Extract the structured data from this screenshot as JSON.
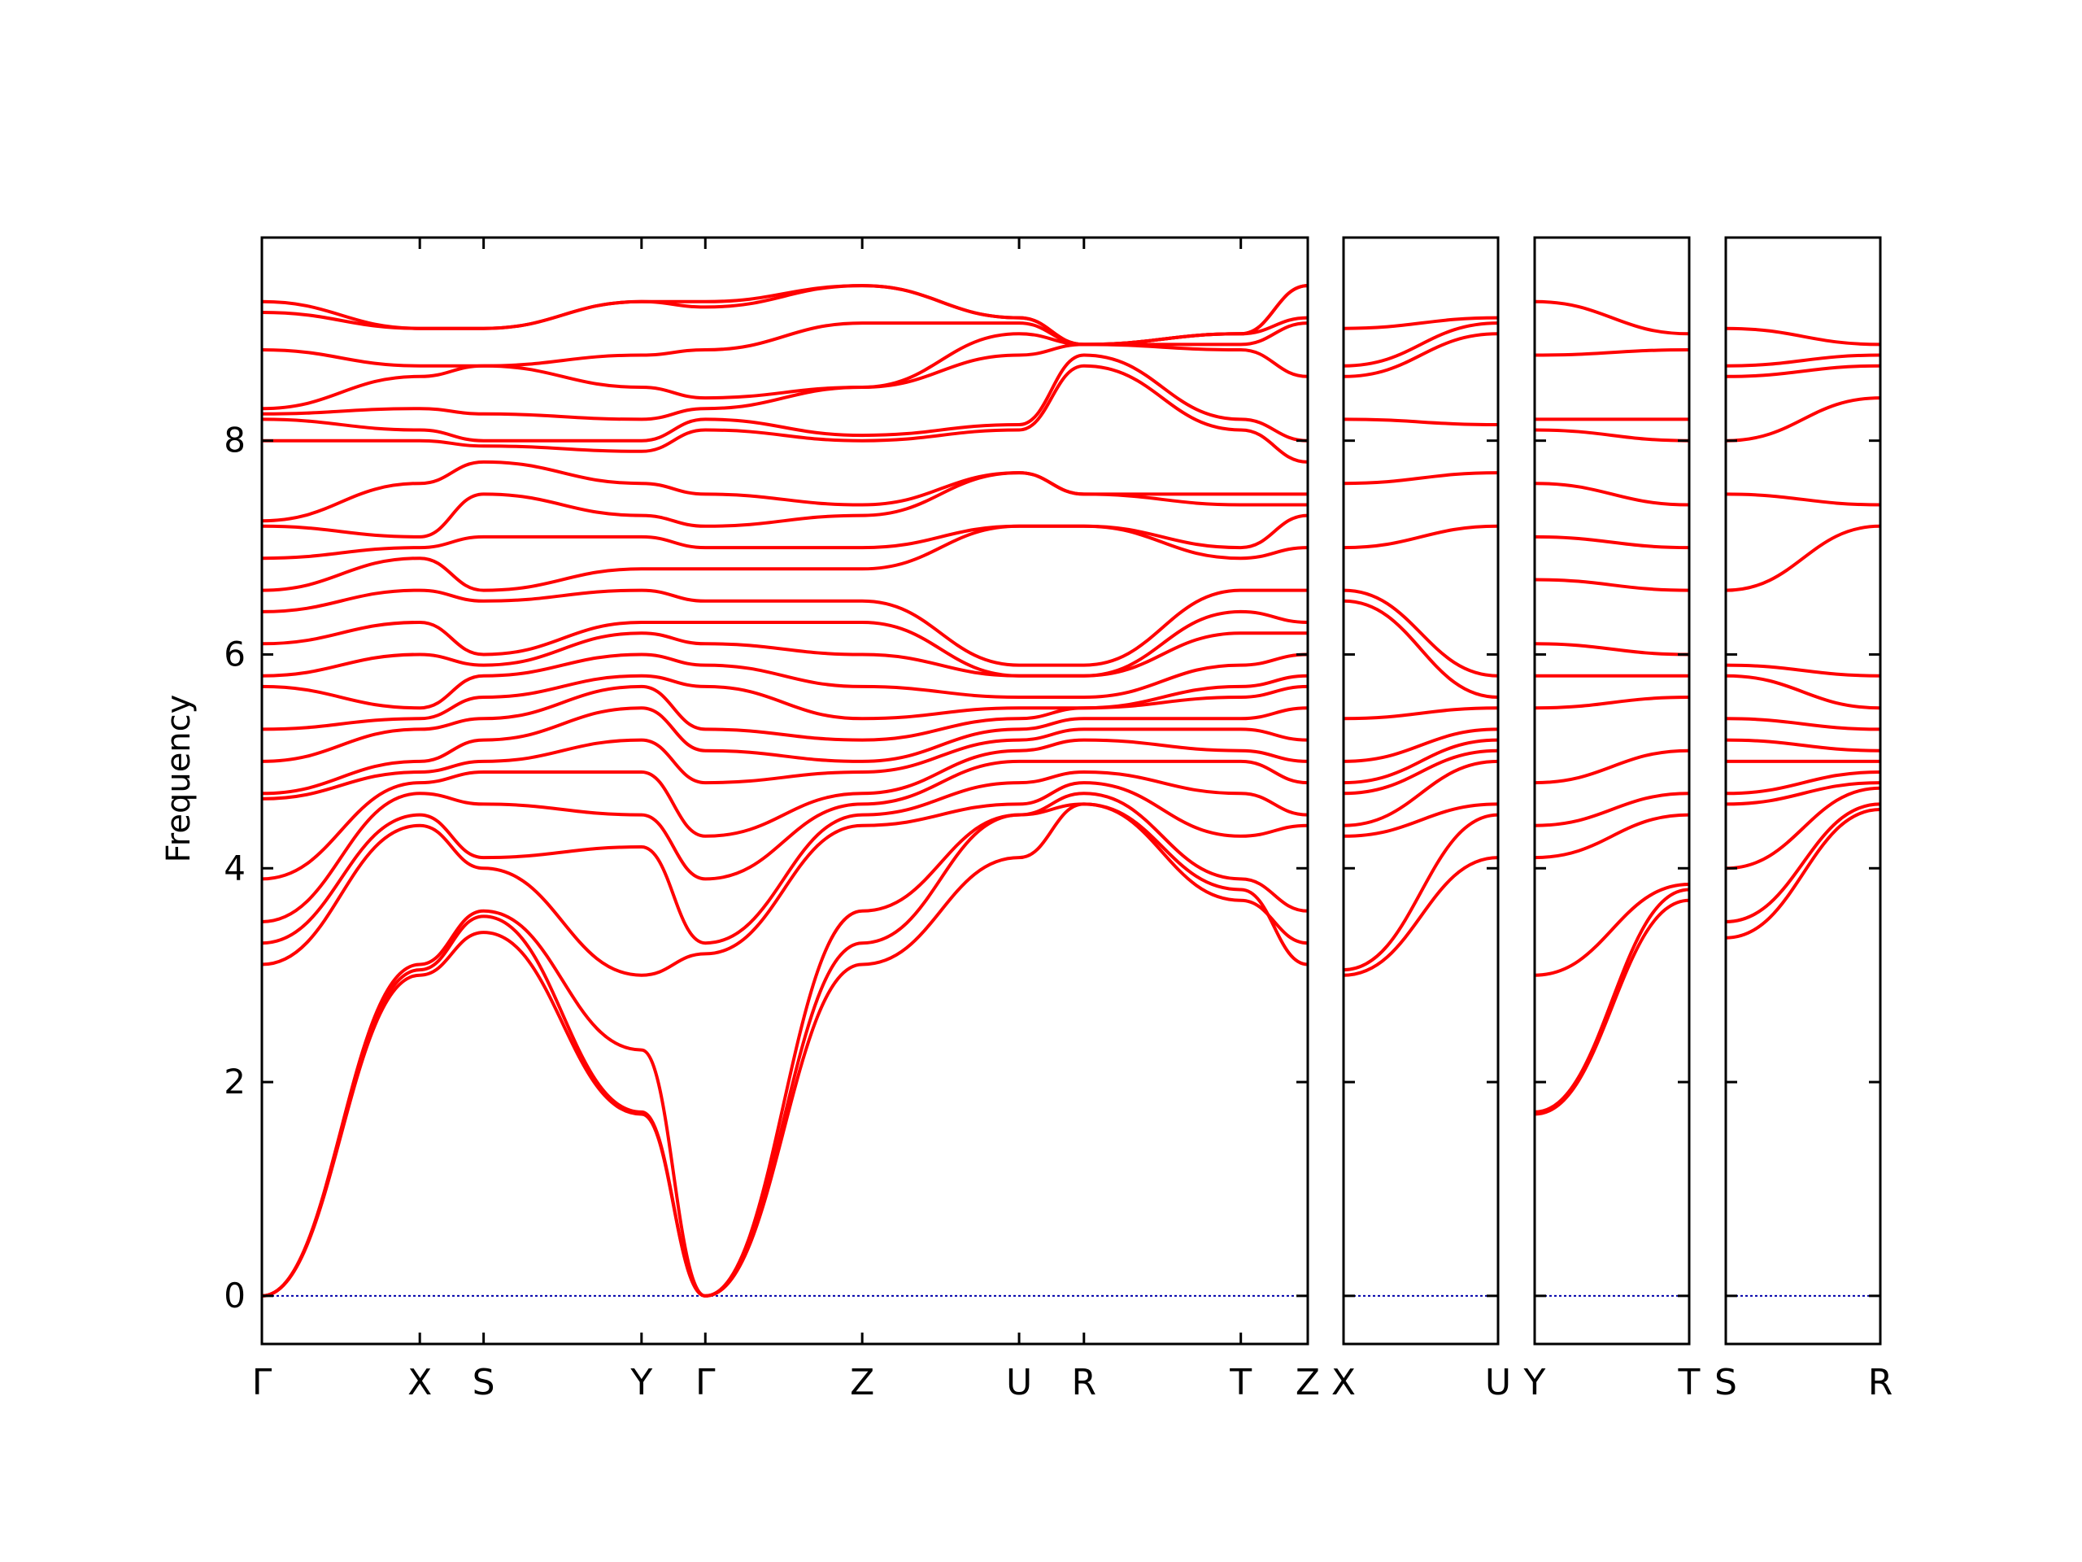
{
  "chart_data": {
    "type": "line",
    "title": "",
    "ylabel": "Frequency",
    "ylim": [
      -0.45,
      9.9
    ],
    "y_ticks": [
      0,
      2,
      4,
      6,
      8
    ],
    "colors": {
      "band": "#ff0000",
      "zero_line": "#0000aa",
      "axes": "#000000"
    },
    "segments": [
      {
        "id": "main",
        "kpath": [
          "Γ",
          "X",
          "S",
          "Y",
          "Γ",
          "Z",
          "U",
          "R",
          "T",
          "Z"
        ],
        "kpos": [
          0,
          0.151,
          0.212,
          0.363,
          0.424,
          0.574,
          0.724,
          0.786,
          0.936,
          1.0
        ],
        "bands": [
          {
            "name": "band-01",
            "values": [
              0.0,
              3.0,
              3.4,
              1.7,
              0.0,
              3.1,
              4.1,
              4.6,
              3.8,
              3.1
            ]
          },
          {
            "name": "band-02",
            "values": [
              0.0,
              3.05,
              3.55,
              1.72,
              0.0,
              3.3,
              4.5,
              4.6,
              3.7,
              3.3
            ]
          },
          {
            "name": "band-03",
            "values": [
              0.0,
              3.1,
              3.6,
              2.3,
              0.0,
              3.6,
              4.5,
              4.7,
              3.9,
              3.6
            ]
          },
          {
            "name": "band-04",
            "values": [
              3.1,
              4.4,
              4.0,
              3.0,
              3.2,
              4.4,
              4.6,
              4.8,
              4.3,
              4.4
            ]
          },
          {
            "name": "band-05",
            "values": [
              3.3,
              4.5,
              4.1,
              4.2,
              3.3,
              4.5,
              4.8,
              4.9,
              4.7,
              4.5
            ]
          },
          {
            "name": "band-06",
            "values": [
              3.5,
              4.7,
              4.6,
              4.5,
              3.9,
              4.6,
              5.0,
              5.0,
              5.0,
              4.8
            ]
          },
          {
            "name": "band-07",
            "values": [
              3.9,
              4.8,
              4.9,
              4.9,
              4.3,
              4.7,
              5.1,
              5.2,
              5.1,
              5.0
            ]
          },
          {
            "name": "band-08",
            "values": [
              4.65,
              4.9,
              5.0,
              5.2,
              4.8,
              4.9,
              5.2,
              5.3,
              5.3,
              5.2
            ]
          },
          {
            "name": "band-09",
            "values": [
              4.7,
              5.0,
              5.2,
              5.5,
              5.1,
              5.0,
              5.3,
              5.4,
              5.4,
              5.5
            ]
          },
          {
            "name": "band-10",
            "values": [
              5.0,
              5.3,
              5.4,
              5.7,
              5.3,
              5.2,
              5.4,
              5.5,
              5.6,
              5.7
            ]
          },
          {
            "name": "band-11",
            "values": [
              5.3,
              5.4,
              5.6,
              5.8,
              5.7,
              5.4,
              5.5,
              5.5,
              5.7,
              5.8
            ]
          },
          {
            "name": "band-12",
            "values": [
              5.7,
              5.5,
              5.8,
              6.0,
              5.9,
              5.7,
              5.6,
              5.6,
              5.9,
              6.0
            ]
          },
          {
            "name": "band-13",
            "values": [
              5.8,
              6.0,
              5.9,
              6.2,
              6.1,
              6.0,
              5.8,
              5.8,
              6.2,
              6.2
            ]
          },
          {
            "name": "band-14",
            "values": [
              6.1,
              6.3,
              6.0,
              6.3,
              6.3,
              6.3,
              5.8,
              5.8,
              6.4,
              6.3
            ]
          },
          {
            "name": "band-15",
            "values": [
              6.4,
              6.6,
              6.5,
              6.6,
              6.5,
              6.5,
              5.9,
              5.9,
              6.6,
              6.6
            ]
          },
          {
            "name": "band-16",
            "values": [
              6.6,
              6.9,
              6.6,
              6.8,
              6.8,
              6.8,
              7.2,
              7.2,
              6.9,
              7.0
            ]
          },
          {
            "name": "band-17",
            "values": [
              6.9,
              7.0,
              7.1,
              7.1,
              7.0,
              7.0,
              7.2,
              7.2,
              7.0,
              7.3
            ]
          },
          {
            "name": "band-18",
            "values": [
              7.2,
              7.1,
              7.5,
              7.3,
              7.2,
              7.3,
              7.7,
              7.5,
              7.4,
              7.4
            ]
          },
          {
            "name": "band-19",
            "values": [
              7.25,
              7.6,
              7.8,
              7.6,
              7.5,
              7.4,
              7.7,
              7.5,
              7.5,
              7.5
            ]
          },
          {
            "name": "band-20",
            "values": [
              8.0,
              8.0,
              7.95,
              7.9,
              8.1,
              8.0,
              8.1,
              8.7,
              8.1,
              7.8
            ]
          },
          {
            "name": "band-21",
            "values": [
              8.2,
              8.1,
              8.0,
              8.0,
              8.2,
              8.05,
              8.15,
              8.8,
              8.2,
              8.0
            ]
          },
          {
            "name": "band-22",
            "values": [
              8.25,
              8.3,
              8.25,
              8.2,
              8.3,
              8.5,
              8.8,
              8.9,
              8.85,
              8.6
            ]
          },
          {
            "name": "band-23",
            "values": [
              8.3,
              8.6,
              8.7,
              8.5,
              8.4,
              8.5,
              9.0,
              8.9,
              8.9,
              9.1
            ]
          },
          {
            "name": "band-24",
            "values": [
              8.85,
              8.7,
              8.7,
              8.8,
              8.85,
              9.1,
              9.1,
              8.9,
              9.0,
              9.15
            ]
          },
          {
            "name": "band-25",
            "values": [
              9.2,
              9.05,
              9.05,
              9.3,
              9.25,
              9.45,
              9.15,
              8.9,
              9.0,
              9.45
            ]
          },
          {
            "name": "band-26",
            "values": [
              9.3,
              9.05,
              9.05,
              9.3,
              9.3,
              9.45,
              9.15,
              8.9,
              9.0,
              9.45
            ]
          }
        ]
      },
      {
        "id": "xu",
        "kpath": [
          "X",
          "U"
        ],
        "kpos": [
          0,
          1
        ],
        "bands": [
          {
            "name": "band-01",
            "values": [
              3.0,
              4.1
            ]
          },
          {
            "name": "band-02",
            "values": [
              3.05,
              4.5
            ]
          },
          {
            "name": "band-03",
            "values": [
              4.3,
              4.6
            ]
          },
          {
            "name": "band-04",
            "values": [
              4.4,
              5.0
            ]
          },
          {
            "name": "band-05",
            "values": [
              4.7,
              5.1
            ]
          },
          {
            "name": "band-06",
            "values": [
              4.8,
              5.2
            ]
          },
          {
            "name": "band-07",
            "values": [
              5.0,
              5.3
            ]
          },
          {
            "name": "band-08",
            "values": [
              5.4,
              5.5
            ]
          },
          {
            "name": "band-09",
            "values": [
              6.5,
              5.6
            ]
          },
          {
            "name": "band-10",
            "values": [
              6.6,
              5.8
            ]
          },
          {
            "name": "band-11",
            "values": [
              7.0,
              7.2
            ]
          },
          {
            "name": "band-12",
            "values": [
              7.6,
              7.7
            ]
          },
          {
            "name": "band-13",
            "values": [
              8.2,
              8.15
            ]
          },
          {
            "name": "band-14",
            "values": [
              8.6,
              9.0
            ]
          },
          {
            "name": "band-15",
            "values": [
              8.7,
              9.1
            ]
          },
          {
            "name": "band-16",
            "values": [
              9.05,
              9.15
            ]
          }
        ]
      },
      {
        "id": "yt",
        "kpath": [
          "Y",
          "T"
        ],
        "kpos": [
          0,
          1
        ],
        "bands": [
          {
            "name": "band-01",
            "values": [
              1.7,
              3.7
            ]
          },
          {
            "name": "band-02",
            "values": [
              1.72,
              3.8
            ]
          },
          {
            "name": "band-03",
            "values": [
              3.0,
              3.85
            ]
          },
          {
            "name": "band-04",
            "values": [
              4.1,
              4.5
            ]
          },
          {
            "name": "band-05",
            "values": [
              4.4,
              4.7
            ]
          },
          {
            "name": "band-06",
            "values": [
              4.8,
              5.1
            ]
          },
          {
            "name": "band-07",
            "values": [
              5.5,
              5.6
            ]
          },
          {
            "name": "band-08",
            "values": [
              5.8,
              5.8
            ]
          },
          {
            "name": "band-09",
            "values": [
              6.1,
              6.0
            ]
          },
          {
            "name": "band-10",
            "values": [
              6.7,
              6.6
            ]
          },
          {
            "name": "band-11",
            "values": [
              7.1,
              7.0
            ]
          },
          {
            "name": "band-12",
            "values": [
              7.6,
              7.4
            ]
          },
          {
            "name": "band-13",
            "values": [
              8.1,
              8.0
            ]
          },
          {
            "name": "band-14",
            "values": [
              8.2,
              8.2
            ]
          },
          {
            "name": "band-15",
            "values": [
              8.8,
              8.85
            ]
          },
          {
            "name": "band-16",
            "values": [
              9.3,
              9.0
            ]
          }
        ]
      },
      {
        "id": "sr",
        "kpath": [
          "S",
          "R"
        ],
        "kpos": [
          0,
          1
        ],
        "bands": [
          {
            "name": "band-01",
            "values": [
              3.35,
              4.55
            ]
          },
          {
            "name": "band-02",
            "values": [
              3.5,
              4.6
            ]
          },
          {
            "name": "band-03",
            "values": [
              4.0,
              4.75
            ]
          },
          {
            "name": "band-04",
            "values": [
              4.6,
              4.8
            ]
          },
          {
            "name": "band-05",
            "values": [
              4.7,
              4.9
            ]
          },
          {
            "name": "band-06",
            "values": [
              5.0,
              5.0
            ]
          },
          {
            "name": "band-07",
            "values": [
              5.2,
              5.1
            ]
          },
          {
            "name": "band-08",
            "values": [
              5.4,
              5.3
            ]
          },
          {
            "name": "band-09",
            "values": [
              5.8,
              5.5
            ]
          },
          {
            "name": "band-10",
            "values": [
              5.9,
              5.8
            ]
          },
          {
            "name": "band-11",
            "values": [
              6.6,
              7.2
            ]
          },
          {
            "name": "band-12",
            "values": [
              7.5,
              7.4
            ]
          },
          {
            "name": "band-13",
            "values": [
              8.0,
              8.4
            ]
          },
          {
            "name": "band-14",
            "values": [
              8.6,
              8.7
            ]
          },
          {
            "name": "band-15",
            "values": [
              8.7,
              8.8
            ]
          },
          {
            "name": "band-16",
            "values": [
              9.05,
              8.9
            ]
          }
        ]
      }
    ]
  }
}
